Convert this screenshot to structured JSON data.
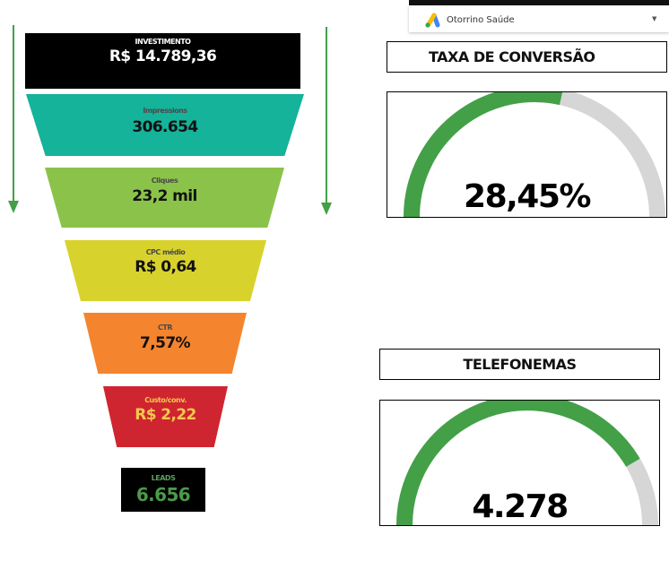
{
  "account": {
    "name": "Otorrino Saúde",
    "logo_icon": "google-ads-icon",
    "caret_icon": "caret-down-icon"
  },
  "funnel": {
    "investment": {
      "label": "INVESTIMENTO",
      "value": "R$ 14.789,36"
    },
    "impressions": {
      "label": "Impressions",
      "value": "306.654"
    },
    "clicks": {
      "label": "Cliques",
      "value": "23,2 mil"
    },
    "cpc": {
      "label": "CPC médio",
      "value": "R$ 0,64"
    },
    "ctr": {
      "label": "CTR",
      "value": "7,57%"
    },
    "cost_per_conv": {
      "label": "Custo/conv.",
      "value": "R$ 2,22"
    },
    "leads": {
      "label": "LEADS",
      "value": "6.656"
    }
  },
  "conversion_rate": {
    "title": "TAXA DE CONVERSÃO",
    "value": "28,45%",
    "fill_fraction": 0.57
  },
  "phone_calls": {
    "title": "TELEFONEMAS",
    "value": "4.278",
    "fill_fraction": 0.83
  },
  "colors": {
    "gauge_fill": "#43a047",
    "gauge_track": "#d6d6d6",
    "arrow": "#43a047",
    "investment_bg": "#000000",
    "impressions_bg": "#14b39a",
    "clicks_bg": "#8bc34a",
    "cpc_bg": "#d8d22c",
    "ctr_bg": "#f5842e",
    "cost_bg": "#cf2530",
    "leads_bg": "#000000"
  }
}
